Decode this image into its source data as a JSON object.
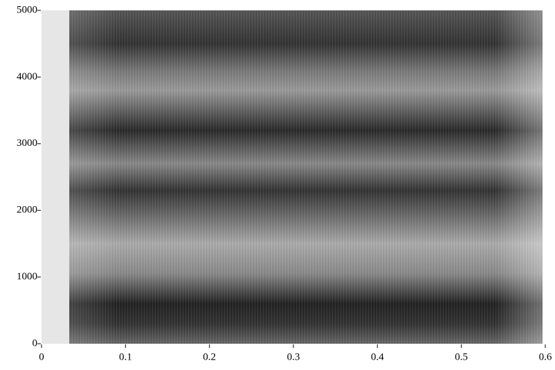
{
  "chart_data": {
    "type": "spectrogram",
    "xlim": [
      0,
      0.6
    ],
    "xticks": [
      0,
      0.1,
      0.2,
      0.3,
      0.4,
      0.5,
      0.6
    ],
    "ylim": [
      0,
      5000
    ],
    "yticks": [
      0,
      1000,
      2000,
      3000,
      4000,
      5000
    ]
  }
}
